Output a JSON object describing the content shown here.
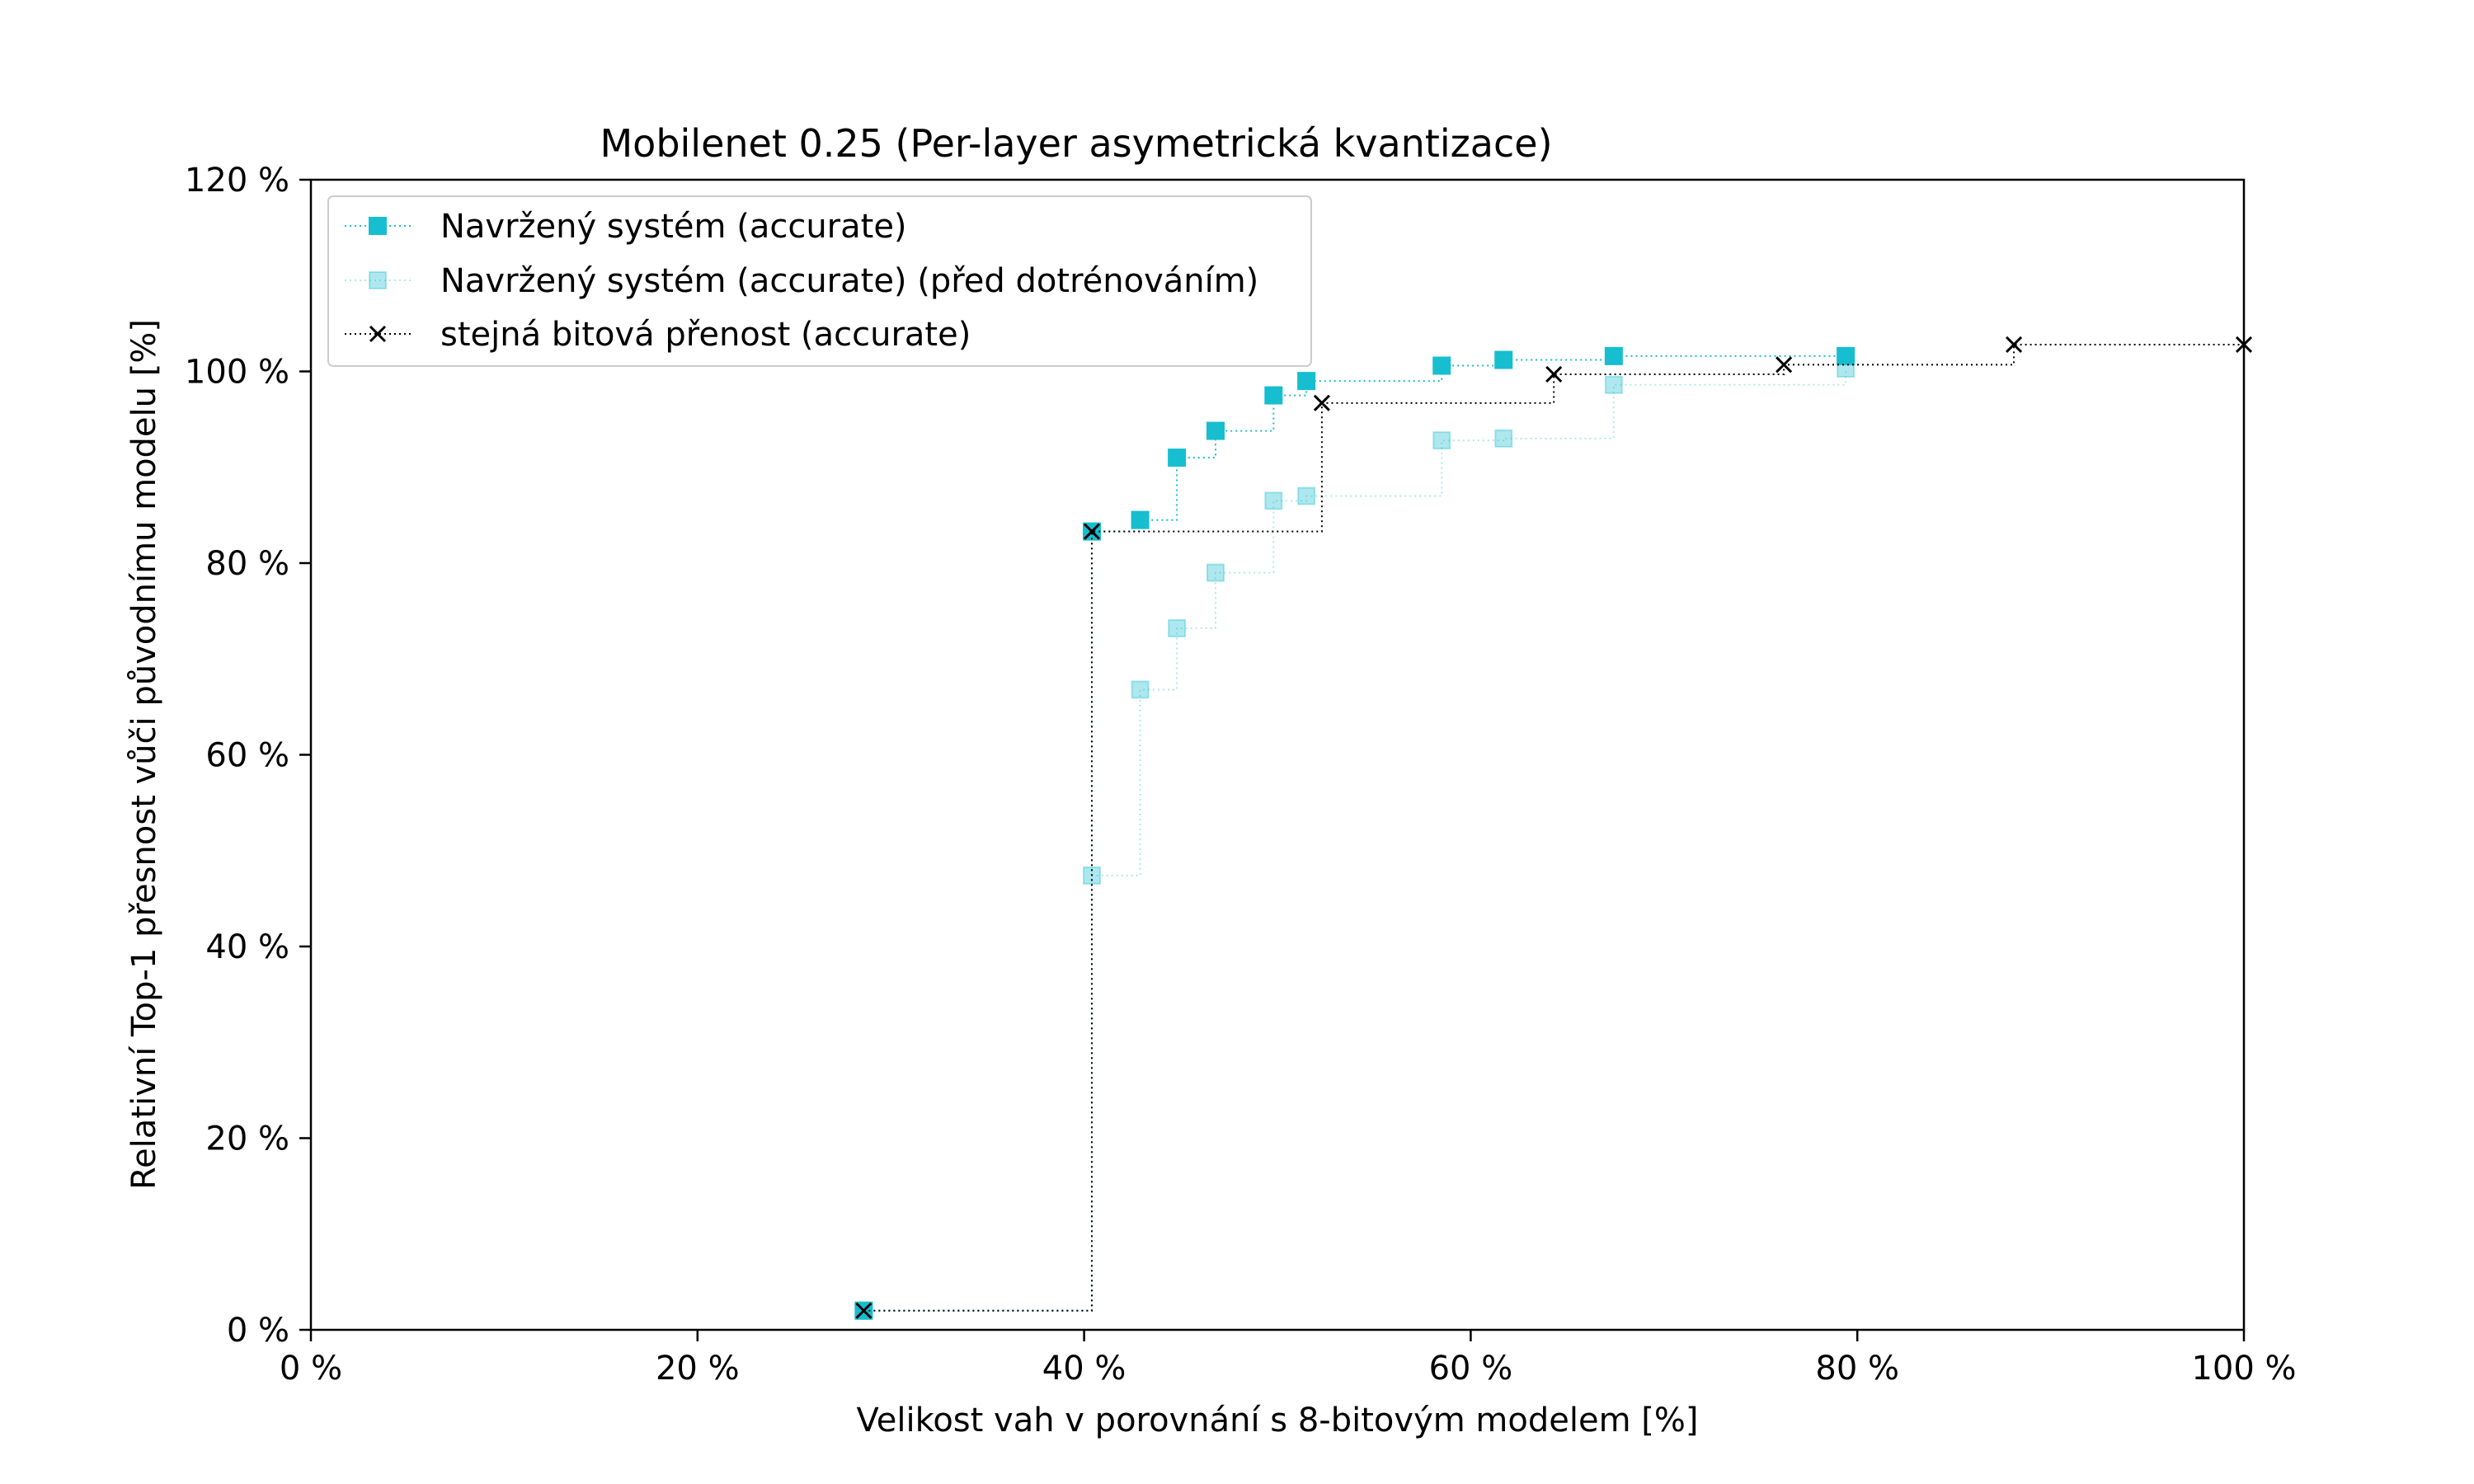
{
  "chart_data": {
    "type": "line",
    "drawstyle": "steps-post",
    "title": "Mobilenet 0.25 (Per-layer asymetrická kvantizace)",
    "xlabel": "Velikost vah v porovnání s 8-bitovým modelem [%]",
    "ylabel": "Relativní Top-1 přesnost vůči původnímu modelu [%]",
    "xlim": [
      0,
      100
    ],
    "ylim": [
      0,
      120
    ],
    "x_ticks": [
      0,
      20,
      40,
      60,
      80,
      100
    ],
    "y_ticks": [
      0,
      20,
      40,
      60,
      80,
      100,
      120
    ],
    "x_tick_labels": [
      "0 %",
      "20 %",
      "40 %",
      "60 %",
      "80 %",
      "100 %"
    ],
    "y_tick_labels": [
      "0 %",
      "20 %",
      "40 %",
      "60 %",
      "80 %",
      "100 %",
      "120 %"
    ],
    "grid": false,
    "legend_position": "top-left",
    "series": [
      {
        "name": "Navržený systém (accurate)",
        "color": "#17becf",
        "marker": "square",
        "opacity": 1,
        "points": [
          [
            28.6,
            2.0
          ],
          [
            40.4,
            83.3
          ],
          [
            42.9,
            84.5
          ],
          [
            44.8,
            91.0
          ],
          [
            46.8,
            93.8
          ],
          [
            49.8,
            97.5
          ],
          [
            51.5,
            99.0
          ],
          [
            58.5,
            100.6
          ],
          [
            61.7,
            101.2
          ],
          [
            67.4,
            101.6
          ],
          [
            79.4,
            101.6
          ]
        ]
      },
      {
        "name": "Navržený systém (accurate) (před dotrénováním)",
        "color": "#17becf",
        "marker": "square",
        "opacity": 0.35,
        "points": [
          [
            28.6,
            2.0
          ],
          [
            40.4,
            47.4
          ],
          [
            42.9,
            66.8
          ],
          [
            44.8,
            73.2
          ],
          [
            46.8,
            79.0
          ],
          [
            49.8,
            86.5
          ],
          [
            51.5,
            87.0
          ],
          [
            58.5,
            92.8
          ],
          [
            61.7,
            93.0
          ],
          [
            67.4,
            98.6
          ],
          [
            79.4,
            100.3
          ]
        ]
      },
      {
        "name": "stejná bitová přenost (accurate)",
        "color": "#000000",
        "marker": "x",
        "opacity": 1,
        "points": [
          [
            28.6,
            2.0
          ],
          [
            40.4,
            83.3
          ],
          [
            52.3,
            96.7
          ],
          [
            64.3,
            99.7
          ],
          [
            76.2,
            100.7
          ],
          [
            88.1,
            102.8
          ],
          [
            100.0,
            102.8
          ]
        ]
      }
    ]
  }
}
